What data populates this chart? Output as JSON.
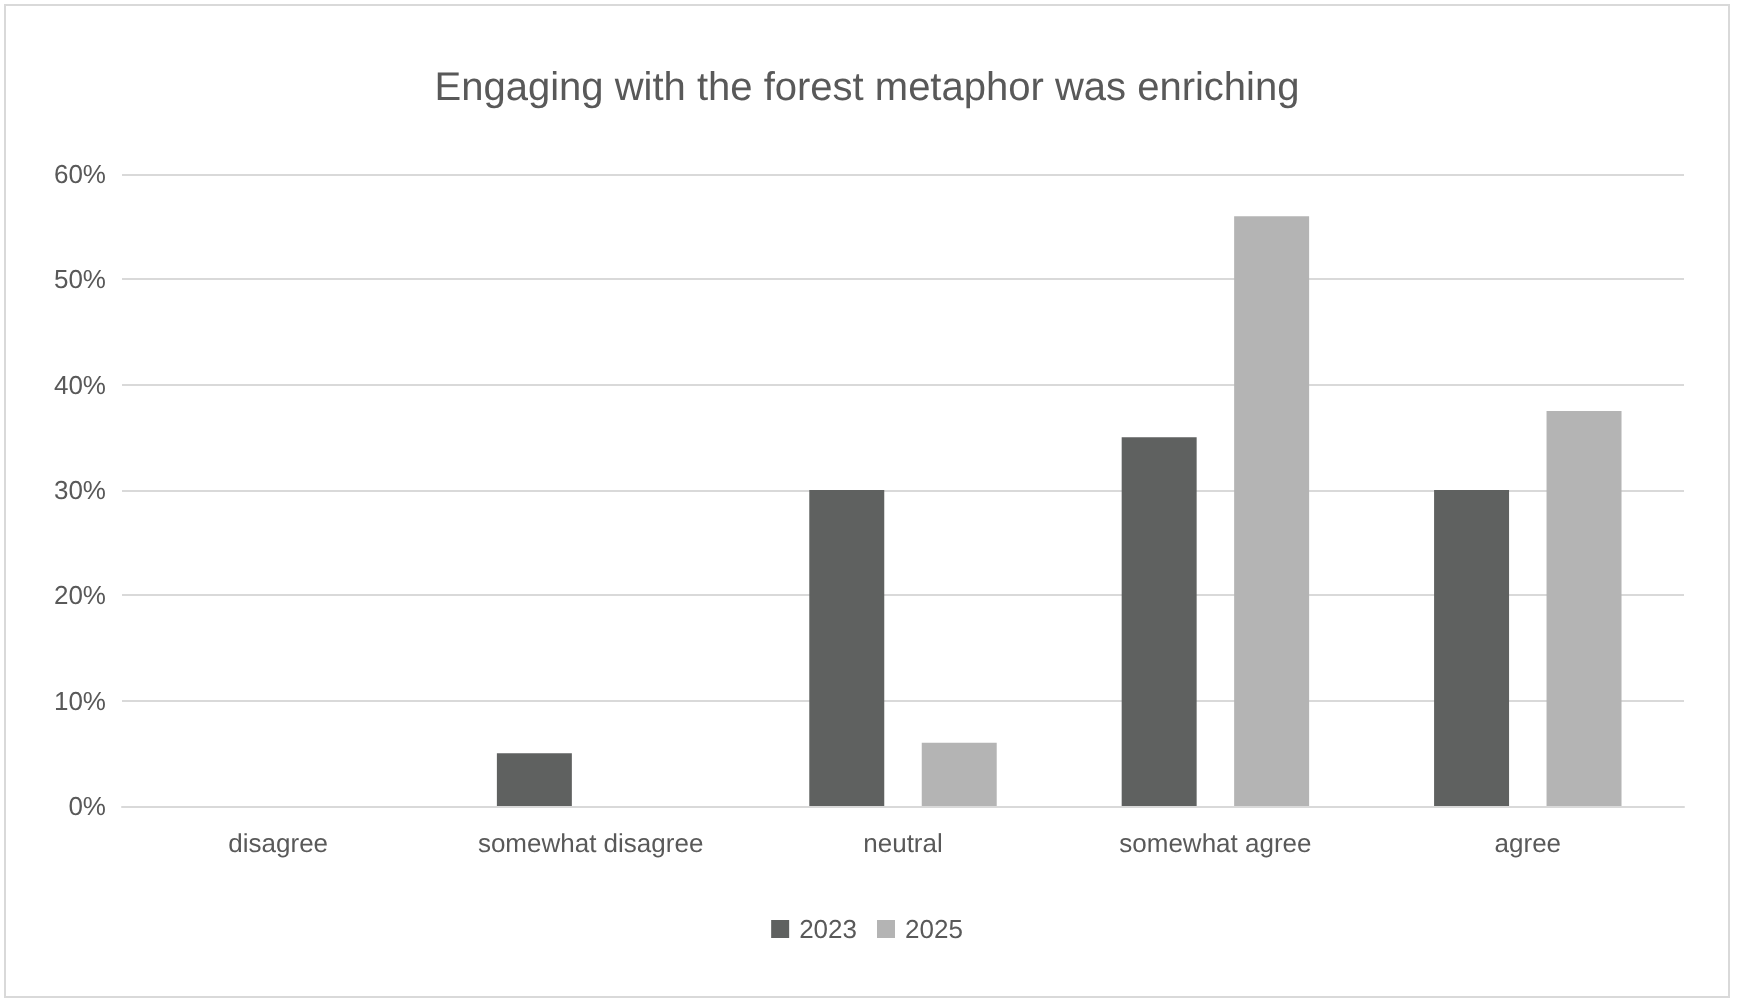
{
  "chart_data": {
    "type": "bar",
    "title": "Engaging with the forest metaphor was enriching",
    "categories": [
      "disagree",
      "somewhat disagree",
      "neutral",
      "somewhat agree",
      "agree"
    ],
    "series": [
      {
        "name": "2023",
        "color": "#5f6160",
        "values": [
          0,
          5,
          30,
          35,
          30
        ]
      },
      {
        "name": "2025",
        "color": "#b4b4b4",
        "values": [
          0,
          0,
          6,
          56,
          37.5
        ]
      }
    ],
    "ylim": [
      0,
      60
    ],
    "yticks": [
      {
        "value": 0,
        "label": "0%"
      },
      {
        "value": 10,
        "label": "10%"
      },
      {
        "value": 20,
        "label": "20%"
      },
      {
        "value": 30,
        "label": "30%"
      },
      {
        "value": 40,
        "label": "40%"
      },
      {
        "value": 50,
        "label": "50%"
      },
      {
        "value": 60,
        "label": "60%"
      }
    ],
    "grid": "y",
    "legend": "bottom"
  }
}
